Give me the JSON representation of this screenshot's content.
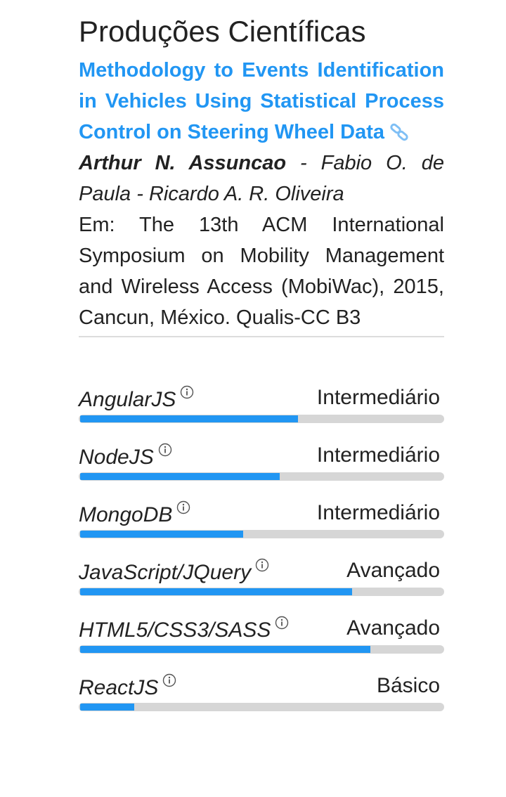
{
  "section": {
    "title": "Produções Científicas"
  },
  "publication": {
    "title": "Methodology to Events Identification in Vehicles Using Statistical Process Control on Steering Wheel Data",
    "link_icon": "link-icon",
    "author_main": "Arthur N. Assuncao",
    "authors_rest": " - Fabio O. de Paula - Ricardo A. R. Oliveira",
    "venue": "Em: The 13th ACM International Symposium on Mobility Management and Wireless Access (MobiWac), 2015, Cancun, México. Qualis-CC B3"
  },
  "skills": [
    {
      "name": "AngularJS",
      "level": "Intermediário",
      "fill": 0.6,
      "icon": "info-icon"
    },
    {
      "name": "NodeJS",
      "level": "Intermediário",
      "fill": 0.55,
      "icon": "info-icon"
    },
    {
      "name": "MongoDB",
      "level": "Intermediário",
      "fill": 0.45,
      "icon": "info-icon"
    },
    {
      "name": "JavaScript/JQuery",
      "level": "Avançado",
      "fill": 0.75,
      "icon": "info-icon"
    },
    {
      "name": "HTML5/CSS3/SASS",
      "level": "Avançado",
      "fill": 0.8,
      "icon": "info-icon"
    },
    {
      "name": "ReactJS",
      "level": "Básico",
      "fill": 0.15,
      "icon": "info-icon"
    }
  ],
  "colors": {
    "accent": "#2196f3",
    "track": "#d6d6d6",
    "text": "#222222"
  }
}
